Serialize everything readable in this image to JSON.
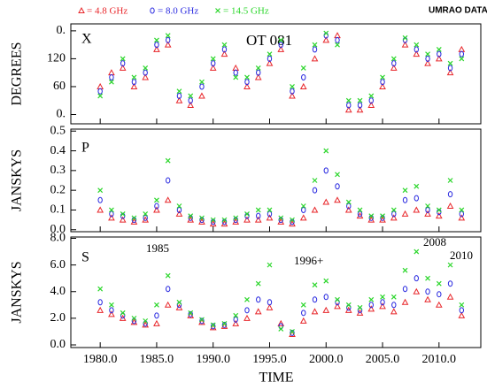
{
  "chart_data": [
    {
      "type": "scatter",
      "title": "UMRAO DATA",
      "panel": "X",
      "annotation": "OT 081",
      "ylabel": "DEGREES",
      "ylim": [
        -20,
        195
      ],
      "yticks": [
        {
          "value": 0,
          "label": "0."
        },
        60,
        120,
        {
          "value": 180,
          "label": "0."
        }
      ],
      "xlim": [
        1977.4,
        2013.7
      ],
      "xticks": [
        1980,
        1985,
        1990,
        1995,
        2000,
        2005,
        2010
      ],
      "x": [
        1980,
        1981,
        1982,
        1983,
        1984,
        1985,
        1986,
        1987,
        1988,
        1989,
        1990,
        1991,
        1992,
        1993,
        1994,
        1995,
        1996,
        1997,
        1998,
        1999,
        2000,
        2001,
        2002,
        2003,
        2004,
        2005,
        2006,
        2007,
        2008,
        2009,
        2010,
        2011,
        2012
      ],
      "series": [
        {
          "name": "= 4.8 GHz",
          "color": "#e8262a",
          "marker": "triangle",
          "values": [
            60,
            90,
            100,
            60,
            80,
            140,
            150,
            30,
            20,
            40,
            100,
            130,
            100,
            60,
            80,
            110,
            140,
            40,
            60,
            120,
            160,
            170,
            10,
            10,
            20,
            60,
            100,
            150,
            130,
            110,
            120,
            90,
            140
          ]
        },
        {
          "name": "= 8.0 GHz",
          "color": "#2a2ae0",
          "marker": "circle",
          "values": [
            50,
            80,
            110,
            70,
            90,
            150,
            160,
            40,
            30,
            60,
            110,
            140,
            90,
            70,
            90,
            120,
            150,
            50,
            80,
            140,
            170,
            160,
            20,
            20,
            30,
            70,
            110,
            160,
            140,
            120,
            130,
            100,
            130
          ]
        },
        {
          "name": "= 14.5 GHz",
          "color": "#2bd62b",
          "marker": "cross",
          "values": [
            40,
            70,
            120,
            80,
            100,
            160,
            170,
            50,
            40,
            70,
            120,
            150,
            80,
            80,
            100,
            130,
            160,
            60,
            100,
            150,
            175,
            150,
            30,
            30,
            40,
            80,
            120,
            165,
            150,
            130,
            140,
            110,
            120
          ]
        }
      ]
    },
    {
      "type": "scatter",
      "panel": "P",
      "ylabel": "JANSKYS",
      "ylim": [
        -0.01,
        0.51
      ],
      "yticks": [
        {
          "value": 0,
          "label": "0.0"
        },
        0.1,
        0.2,
        0.3,
        0.4,
        0.5
      ],
      "xlim": [
        1977.4,
        2013.7
      ],
      "xticks": [
        1980,
        1985,
        1990,
        1995,
        2000,
        2005,
        2010
      ],
      "x": [
        1980,
        1981,
        1982,
        1983,
        1984,
        1985,
        1986,
        1987,
        1988,
        1989,
        1990,
        1991,
        1992,
        1993,
        1994,
        1995,
        1996,
        1997,
        1998,
        1999,
        2000,
        2001,
        2002,
        2003,
        2004,
        2005,
        2006,
        2007,
        2008,
        2009,
        2010,
        2011,
        2012
      ],
      "series": [
        {
          "name": "= 4.8 GHz",
          "color": "#e8262a",
          "marker": "triangle",
          "values": [
            0.1,
            0.06,
            0.05,
            0.04,
            0.05,
            0.1,
            0.15,
            0.08,
            0.05,
            0.04,
            0.03,
            0.03,
            0.04,
            0.05,
            0.05,
            0.06,
            0.04,
            0.03,
            0.06,
            0.1,
            0.14,
            0.15,
            0.1,
            0.07,
            0.05,
            0.05,
            0.06,
            0.08,
            0.1,
            0.08,
            0.07,
            0.12,
            0.06
          ]
        },
        {
          "name": "= 8.0 GHz",
          "color": "#2a2ae0",
          "marker": "circle",
          "values": [
            0.15,
            0.08,
            0.07,
            0.05,
            0.06,
            0.12,
            0.25,
            0.1,
            0.06,
            0.05,
            0.04,
            0.04,
            0.05,
            0.07,
            0.07,
            0.08,
            0.05,
            0.04,
            0.1,
            0.2,
            0.3,
            0.22,
            0.12,
            0.08,
            0.06,
            0.06,
            0.08,
            0.15,
            0.16,
            0.1,
            0.09,
            0.18,
            0.08
          ]
        },
        {
          "name": "= 14.5 GHz",
          "color": "#2bd62b",
          "marker": "cross",
          "values": [
            0.2,
            0.1,
            0.08,
            0.06,
            0.08,
            0.15,
            0.35,
            0.12,
            0.07,
            0.06,
            0.05,
            0.05,
            0.06,
            0.08,
            0.1,
            0.1,
            0.06,
            0.05,
            0.12,
            0.25,
            0.4,
            0.28,
            0.14,
            0.1,
            0.07,
            0.07,
            0.1,
            0.2,
            0.22,
            0.12,
            0.1,
            0.25,
            0.1
          ]
        }
      ]
    },
    {
      "type": "scatter",
      "panel": "S",
      "ylabel": "JANSKYS",
      "xlabel": "TIME",
      "annotations": [
        "1985",
        "1996+",
        "2008",
        "2010"
      ],
      "ylim": [
        -0.2,
        8.1
      ],
      "yticks": [
        {
          "value": 0,
          "label": "0.0"
        },
        {
          "value": 2,
          "label": "2.0"
        },
        {
          "value": 4,
          "label": "4.0"
        },
        {
          "value": 6,
          "label": "6.0"
        },
        {
          "value": 8,
          "label": "8.0"
        }
      ],
      "xlim": [
        1977.4,
        2013.7
      ],
      "xticks": [
        {
          "value": 1980,
          "label": "1980.0"
        },
        {
          "value": 1985,
          "label": "1985.0"
        },
        {
          "value": 1990,
          "label": "1990.0"
        },
        {
          "value": 1995,
          "label": "1995.0"
        },
        {
          "value": 2000,
          "label": "2000.0"
        },
        {
          "value": 2005,
          "label": "2005.0"
        },
        {
          "value": 2010,
          "label": "2010.0"
        }
      ],
      "x": [
        1980,
        1981,
        1982,
        1983,
        1984,
        1985,
        1986,
        1987,
        1988,
        1989,
        1990,
        1991,
        1992,
        1993,
        1994,
        1995,
        1996,
        1997,
        1998,
        1999,
        2000,
        2001,
        2002,
        2003,
        2004,
        2005,
        2006,
        2007,
        2008,
        2009,
        2010,
        2011,
        2012
      ],
      "series": [
        {
          "name": "= 4.8 GHz",
          "color": "#e8262a",
          "marker": "triangle",
          "values": [
            2.6,
            2.3,
            2.0,
            1.7,
            1.5,
            1.6,
            3.0,
            2.8,
            2.2,
            1.7,
            1.3,
            1.4,
            1.6,
            2.0,
            2.5,
            2.8,
            1.6,
            0.8,
            1.8,
            2.5,
            2.6,
            2.9,
            2.6,
            2.4,
            2.7,
            2.9,
            2.5,
            3.2,
            4.0,
            3.4,
            3.0,
            3.6,
            2.2
          ]
        },
        {
          "name": "= 8.0 GHz",
          "color": "#2a2ae0",
          "marker": "circle",
          "values": [
            3.2,
            2.6,
            2.2,
            1.8,
            1.6,
            2.2,
            4.2,
            3.0,
            2.3,
            1.8,
            1.4,
            1.5,
            1.9,
            2.6,
            3.4,
            3.2,
            1.4,
            0.9,
            2.4,
            3.4,
            3.6,
            3.2,
            2.8,
            2.6,
            3.0,
            3.2,
            3.0,
            4.2,
            5.0,
            4.0,
            3.8,
            4.6,
            2.6
          ]
        },
        {
          "name": "= 14.5 GHz",
          "color": "#2bd62b",
          "marker": "cross",
          "values": [
            4.2,
            3.0,
            2.4,
            2.0,
            1.8,
            3.0,
            5.2,
            3.2,
            2.4,
            1.9,
            1.5,
            1.6,
            2.2,
            3.4,
            4.6,
            6.0,
            1.2,
            1.0,
            3.0,
            4.5,
            4.8,
            3.4,
            3.0,
            2.8,
            3.4,
            3.6,
            3.6,
            5.6,
            7.0,
            5.0,
            4.6,
            6.0,
            3.0
          ]
        }
      ]
    }
  ]
}
